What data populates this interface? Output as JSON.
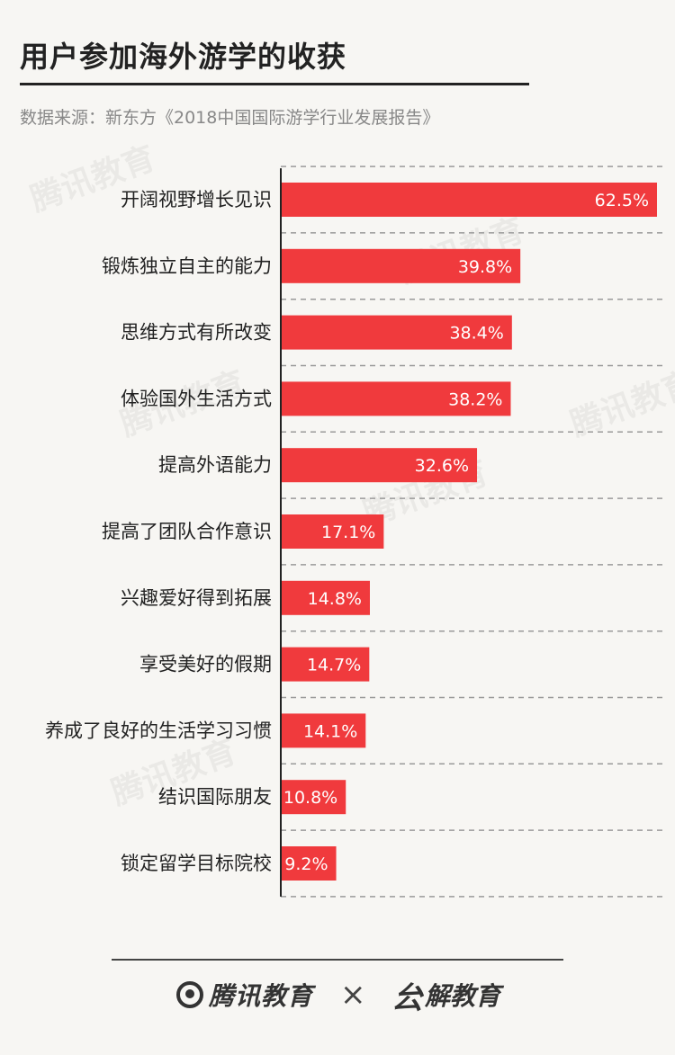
{
  "header": {
    "title": "用户参加海外游学的收获",
    "source": "数据来源：新东方《2018中国国际游学行业发展报告》"
  },
  "chart_data": {
    "type": "bar",
    "orientation": "horizontal",
    "categories": [
      "开阔视野增长见识",
      "锻炼独立自主的能力",
      "思维方式有所改变",
      "体验国外生活方式",
      "提高外语能力",
      "提高了团队合作意识",
      "兴趣爱好得到拓展",
      "享受美好的假期",
      "养成了良好的生活学习习惯",
      "结识国际朋友",
      "锁定留学目标院校"
    ],
    "values": [
      62.5,
      39.8,
      38.4,
      38.2,
      32.6,
      17.1,
      14.8,
      14.7,
      14.1,
      10.8,
      9.2
    ],
    "value_labels": [
      "62.5%",
      "39.8%",
      "38.4%",
      "38.2%",
      "32.6%",
      "17.1%",
      "14.8%",
      "14.7%",
      "14.1%",
      "10.8%",
      "9.2%"
    ],
    "title": "用户参加海外游学的收获",
    "bar_color": "#f03a3d",
    "xlim": [
      0,
      62.5
    ],
    "grid": "dashed-horizontal",
    "legend": "none"
  },
  "watermark": {
    "text": "腾讯教育"
  },
  "footer": {
    "logo_left": "腾讯教育",
    "separator": "×",
    "logo_right_mark": "㕕",
    "logo_right_text": "解教育"
  }
}
